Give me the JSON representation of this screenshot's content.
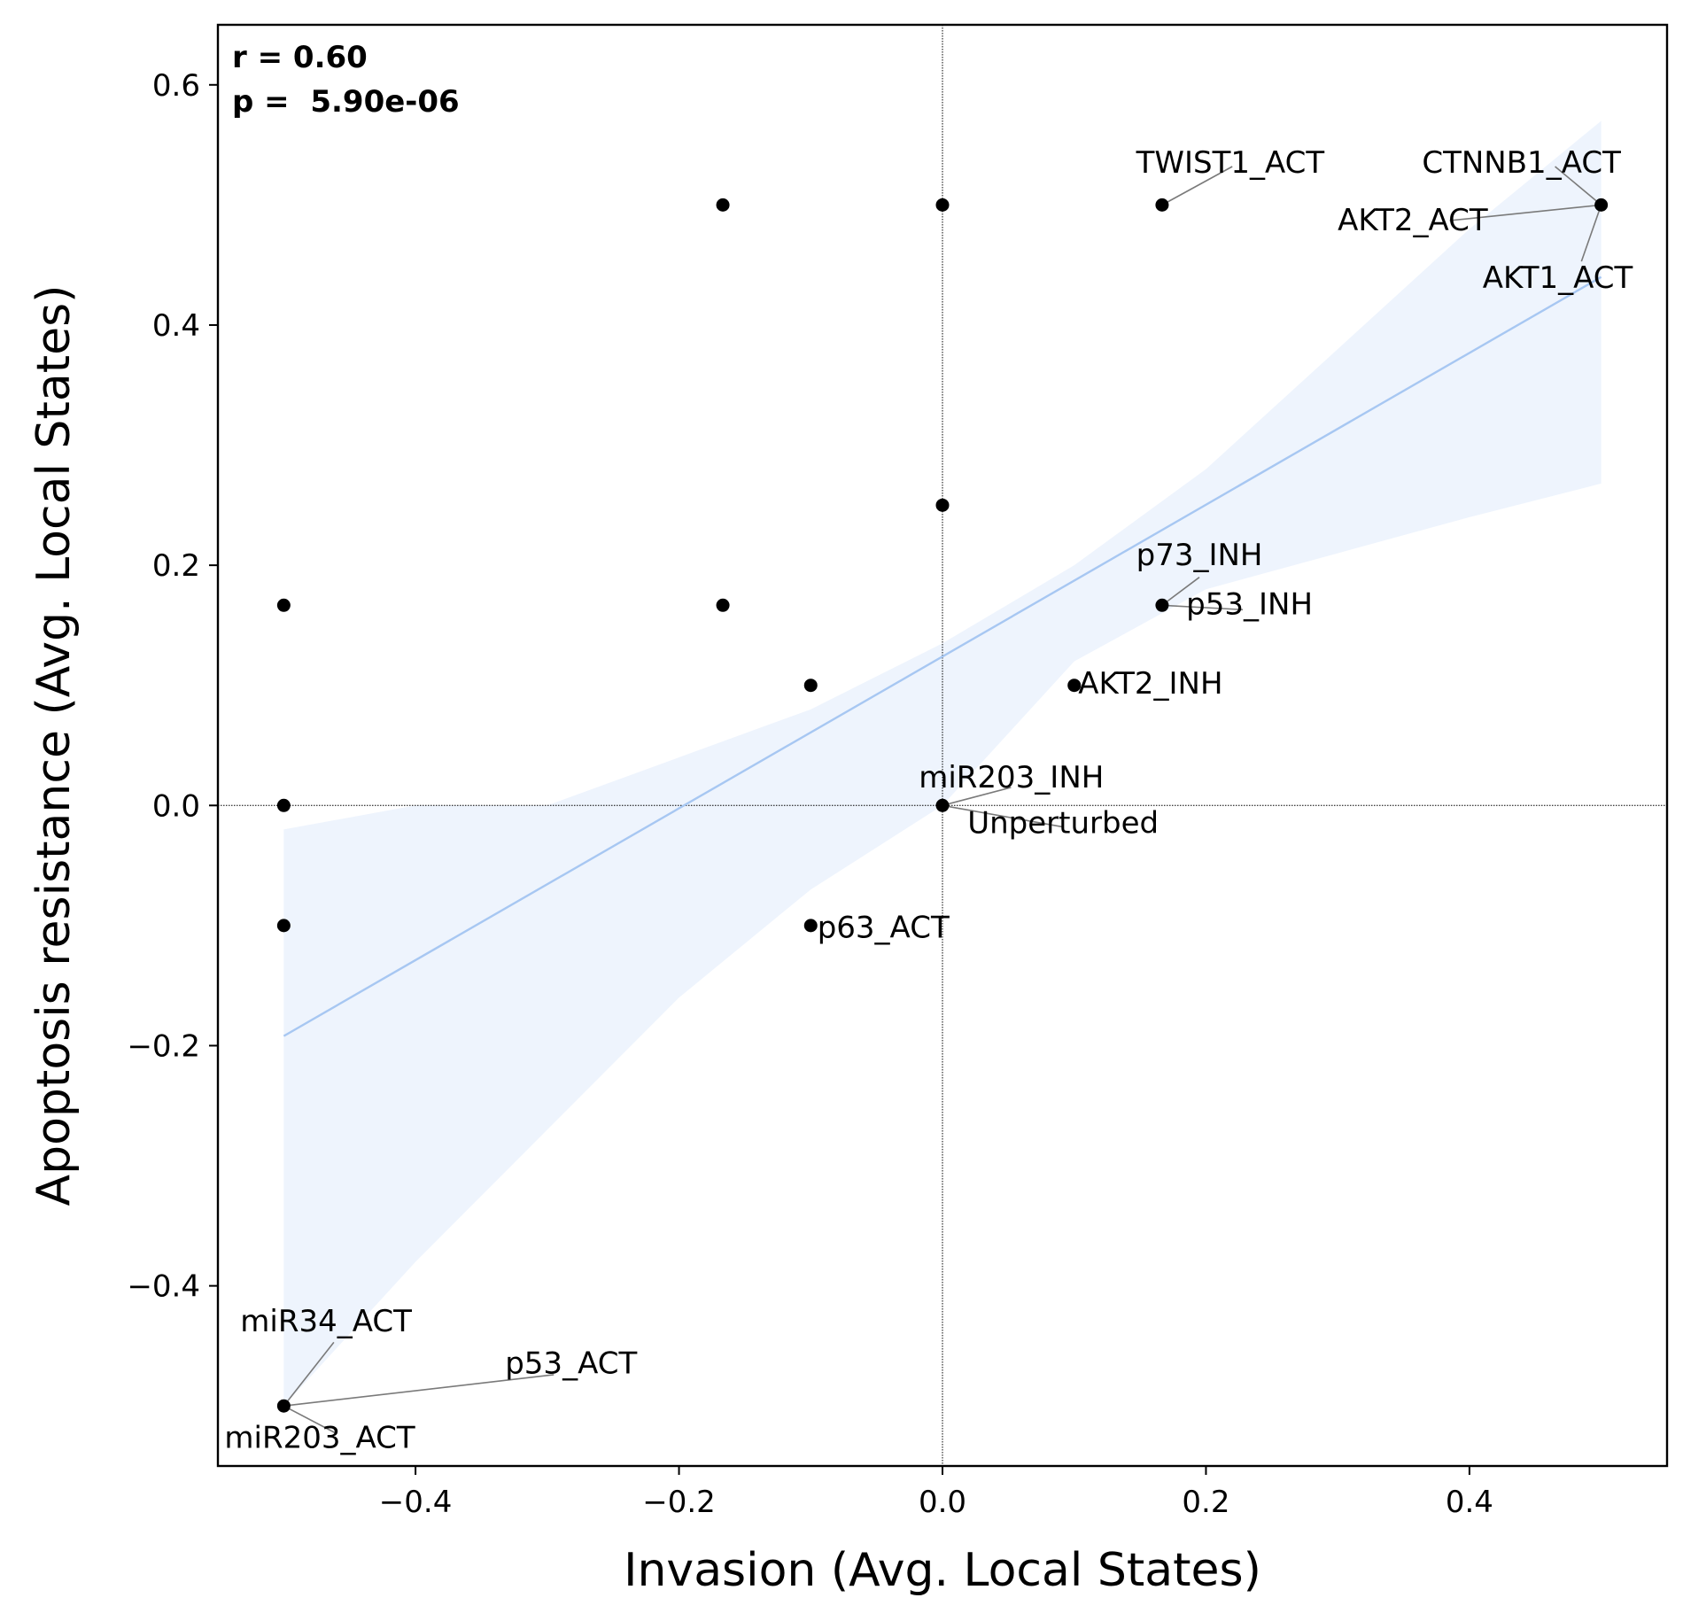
{
  "chart_data": {
    "type": "scatter",
    "title": "",
    "xlabel": "Invasion (Avg. Local States)",
    "ylabel": "Apoptosis resistance (Avg. Local States)",
    "xlim": [
      -0.55,
      0.55
    ],
    "ylim": [
      -0.55,
      0.65
    ],
    "xticks": [
      -0.4,
      -0.2,
      0.0,
      0.2,
      0.4
    ],
    "xtick_labels": [
      "−0.4",
      "−0.2",
      "0.0",
      "0.2",
      "0.4"
    ],
    "yticks": [
      -0.4,
      -0.2,
      0.0,
      0.2,
      0.4,
      0.6
    ],
    "ytick_labels": [
      "−0.4",
      "−0.2",
      "0.0",
      "0.2",
      "0.4",
      "0.6"
    ],
    "grid": false,
    "reference_lines": {
      "x": 0,
      "y": 0,
      "style": "dotted"
    },
    "stats": {
      "r_text": "r = 0.60",
      "p_text": "p =  5.90e-06"
    },
    "regression": {
      "x": [
        -0.5,
        0.5
      ],
      "y": [
        -0.192,
        0.44
      ],
      "color": "#a7c7f2",
      "ci_color": "#eef4fd",
      "ci_upper": [
        [
          -0.5,
          -0.02
        ],
        [
          -0.4,
          0.0
        ],
        [
          -0.3,
          0.0
        ],
        [
          -0.2,
          0.04
        ],
        [
          -0.1,
          0.08
        ],
        [
          0.0,
          0.135
        ],
        [
          0.1,
          0.2
        ],
        [
          0.2,
          0.28
        ],
        [
          0.3,
          0.38
        ],
        [
          0.4,
          0.48
        ],
        [
          0.5,
          0.57
        ]
      ],
      "ci_lower": [
        [
          -0.5,
          -0.5
        ],
        [
          -0.4,
          -0.38
        ],
        [
          -0.3,
          -0.27
        ],
        [
          -0.2,
          -0.16
        ],
        [
          -0.1,
          -0.07
        ],
        [
          0.0,
          0.0
        ],
        [
          0.1,
          0.12
        ],
        [
          0.2,
          0.18
        ],
        [
          0.3,
          0.21
        ],
        [
          0.4,
          0.24
        ],
        [
          0.5,
          0.268
        ]
      ]
    },
    "points": [
      {
        "x": -0.1667,
        "y": 0.5
      },
      {
        "x": 0.0,
        "y": 0.5
      },
      {
        "x": 0.1667,
        "y": 0.5
      },
      {
        "x": 0.5,
        "y": 0.5
      },
      {
        "x": 0.0,
        "y": 0.25
      },
      {
        "x": -0.5,
        "y": 0.1667
      },
      {
        "x": -0.1667,
        "y": 0.1667
      },
      {
        "x": 0.1667,
        "y": 0.1667
      },
      {
        "x": -0.1,
        "y": 0.1
      },
      {
        "x": 0.1,
        "y": 0.1
      },
      {
        "x": -0.5,
        "y": 0.0
      },
      {
        "x": 0.0,
        "y": 0.0
      },
      {
        "x": -0.5,
        "y": -0.1
      },
      {
        "x": -0.1,
        "y": -0.1
      },
      {
        "x": -0.5,
        "y": -0.5
      }
    ],
    "point_color": "#000000",
    "annotations": [
      {
        "text": "TWIST1_ACT",
        "x": 0.1667,
        "y": 0.5,
        "tx": 0.147,
        "ty": 0.527,
        "lx": 0.22,
        "ly": 0.532
      },
      {
        "text": "CTNNB1_ACT",
        "x": 0.5,
        "y": 0.5,
        "tx": 0.364,
        "ty": 0.527,
        "lx": 0.465,
        "ly": 0.532
      },
      {
        "text": "AKT2_ACT",
        "x": 0.5,
        "y": 0.5,
        "tx": 0.3,
        "ty": 0.479,
        "lx": 0.385,
        "ly": 0.487
      },
      {
        "text": "AKT1_ACT",
        "x": 0.5,
        "y": 0.5,
        "tx": 0.41,
        "ty": 0.431,
        "lx": 0.485,
        "ly": 0.453
      },
      {
        "text": "p73_INH",
        "x": 0.1667,
        "y": 0.1667,
        "tx": 0.147,
        "ty": 0.2,
        "lx": 0.195,
        "ly": 0.19
      },
      {
        "text": "p53_INH",
        "x": 0.1667,
        "y": 0.1667,
        "tx": 0.185,
        "ty": 0.159,
        "lx": 0.228,
        "ly": 0.163
      },
      {
        "text": "AKT2_INH",
        "x": 0.1,
        "y": 0.1,
        "tx": 0.103,
        "ty": 0.093
      },
      {
        "text": "miR203_INH",
        "x": 0.0,
        "y": 0.0,
        "tx": -0.018,
        "ty": 0.015,
        "lx": 0.052,
        "ly": 0.015
      },
      {
        "text": "Unperturbed",
        "x": 0.0,
        "y": 0.0,
        "tx": 0.019,
        "ty": -0.023,
        "lx": 0.092,
        "ly": -0.018
      },
      {
        "text": "p63_ACT",
        "x": -0.1,
        "y": -0.1,
        "tx": -0.095,
        "ty": -0.11
      },
      {
        "text": "miR34_ACT",
        "x": -0.5,
        "y": -0.5,
        "tx": -0.533,
        "ty": -0.438,
        "lx": -0.462,
        "ly": -0.447
      },
      {
        "text": "p53_ACT",
        "x": -0.5,
        "y": -0.5,
        "tx": -0.332,
        "ty": -0.473,
        "lx": -0.295,
        "ly": -0.474
      },
      {
        "text": "miR203_ACT",
        "x": -0.5,
        "y": -0.5,
        "tx": -0.545,
        "ty": -0.535,
        "lx": -0.46,
        "ly": -0.523
      }
    ]
  }
}
